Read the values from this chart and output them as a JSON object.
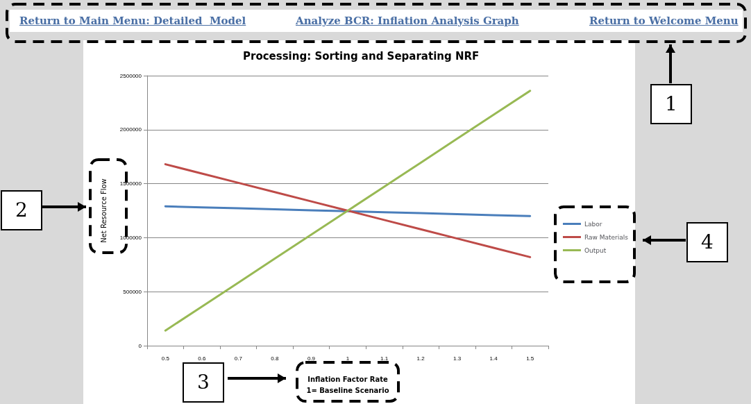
{
  "chart_data": {
    "type": "line",
    "title": "Processing: Sorting and Separating NRF",
    "xlabel": "Inflation Factor Rate\n1= Baseline Scenario",
    "ylabel": "Net Resource Flow",
    "categories": [
      "0.5",
      "0.6",
      "0.7",
      "0.8",
      "0.9",
      "1",
      "1.1",
      "1.2",
      "1.3",
      "1.4",
      "1.5"
    ],
    "series": [
      {
        "name": "Labor",
        "color": "#4a7ebb",
        "values": [
          1290000,
          1281000,
          1272000,
          1263000,
          1254000,
          1245000,
          1236000,
          1227000,
          1218000,
          1209000,
          1200000
        ]
      },
      {
        "name": "Raw Materials",
        "color": "#be4b48",
        "values": [
          1680000,
          1594000,
          1508000,
          1422000,
          1336000,
          1250000,
          1164000,
          1078000,
          992000,
          906000,
          820000
        ]
      },
      {
        "name": "Output",
        "color": "#98b954",
        "values": [
          140000,
          362000,
          584000,
          806000,
          1028000,
          1250000,
          1472000,
          1694000,
          1916000,
          2138000,
          2360000
        ]
      }
    ],
    "ylim": [
      0,
      2500000
    ],
    "yticks": [
      0,
      500000,
      1000000,
      1500000,
      2000000,
      2500000
    ],
    "grid": "y",
    "legend": "right",
    "marker": "none",
    "line_style": "solid",
    "annotations": [
      "Return to Main Menu: Detailed  Model",
      "Analyze BCR: Inflation Analysis Graph",
      "Return to Welcome Menu",
      "1",
      "2",
      "3",
      "4"
    ]
  }
}
